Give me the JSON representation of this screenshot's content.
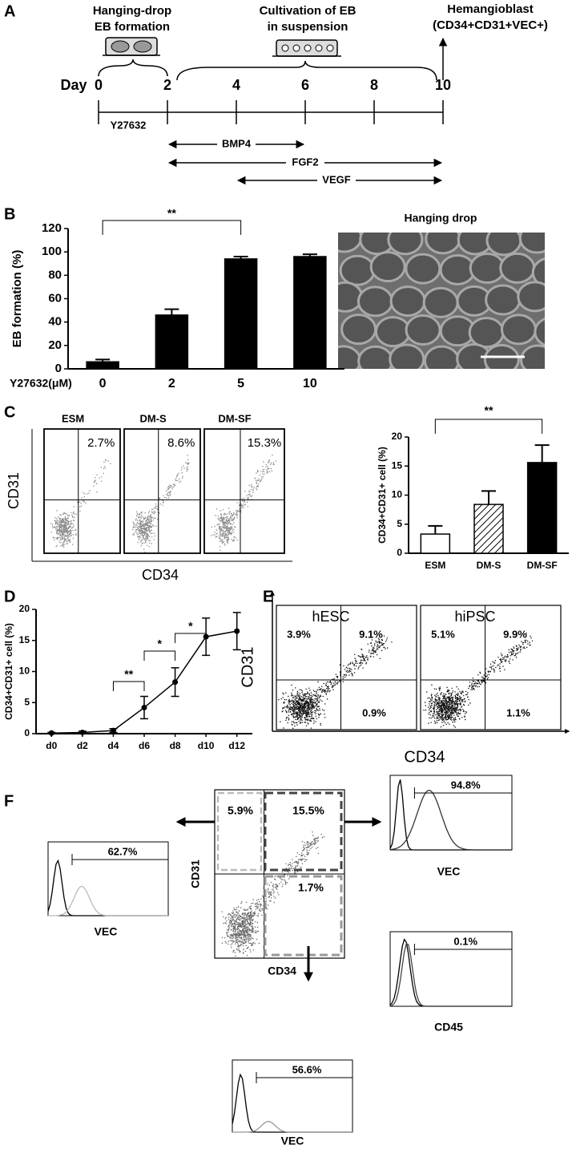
{
  "panels": [
    "A",
    "B",
    "C",
    "D",
    "E",
    "F"
  ],
  "timeline": {
    "day_label": "Day",
    "days": [
      0,
      2,
      4,
      6,
      8,
      10
    ],
    "step1": [
      "Hanging-drop",
      "EB formation"
    ],
    "step2": [
      "Cultivation of EB",
      "in suspension"
    ],
    "result": [
      "Hemangioblast",
      "(CD34+CD31+VEC+)"
    ],
    "treatments": [
      "Y27632",
      "BMP4",
      "FGF2",
      "VEGF"
    ]
  },
  "micrograph_title": "Hanging drop",
  "chart_data": [
    {
      "type": "bar",
      "ylabel": "EB formation (%)",
      "xlabel": "Y27632(μM)",
      "categories": [
        "0",
        "2",
        "5",
        "10"
      ],
      "values": [
        6,
        46,
        94,
        96
      ],
      "errors": [
        2,
        5,
        2,
        2
      ],
      "fills": [
        "black",
        "black",
        "black",
        "black"
      ],
      "ylim": [
        0,
        120
      ],
      "yticks": [
        0,
        20,
        40,
        60,
        80,
        100,
        120
      ],
      "annotations": [
        "**"
      ]
    },
    {
      "type": "bar",
      "ylabel": "CD34+CD31+ cell (%)",
      "categories": [
        "ESM",
        "DM-S",
        "DM-SF"
      ],
      "values": [
        3.3,
        8.4,
        15.6
      ],
      "errors": [
        1.4,
        2.3,
        3.0
      ],
      "fills": [
        "white",
        "hatched",
        "black"
      ],
      "ylim": [
        0,
        20
      ],
      "yticks": [
        0,
        5,
        10,
        15,
        20
      ],
      "annotations": [
        "**"
      ]
    },
    {
      "type": "line",
      "ylabel": "CD34+CD31+ cell (%)",
      "categories": [
        "d0",
        "d2",
        "d4",
        "d6",
        "d8",
        "d10",
        "d12"
      ],
      "values": [
        0.1,
        0.2,
        0.5,
        4.2,
        8.3,
        15.6,
        16.5
      ],
      "errors": [
        0.1,
        0.2,
        0.3,
        1.8,
        2.3,
        3.0,
        3.0
      ],
      "color": "#000000",
      "ylim": [
        0,
        20
      ],
      "yticks": [
        0,
        5,
        10,
        15,
        20
      ],
      "annotations": [
        "**",
        "*",
        "*"
      ]
    }
  ],
  "flow_c": {
    "y_label": "CD31",
    "x_label": "CD34",
    "plots": [
      {
        "title": "ESM",
        "value": "2.7%"
      },
      {
        "title": "DM-S",
        "value": "8.6%"
      },
      {
        "title": "DM-SF",
        "value": "15.3%"
      }
    ]
  },
  "flow_e": {
    "y_label": "CD31",
    "x_label": "CD34",
    "plots": [
      {
        "title": "hESC",
        "quadrants": [
          "3.9%",
          "9.1%",
          "0.9%"
        ]
      },
      {
        "title": "hiPSC",
        "quadrants": [
          "5.1%",
          "9.9%",
          "1.1%"
        ]
      }
    ]
  },
  "flow_f": {
    "y_label": "CD31",
    "x_label": "CD34",
    "quadrants": [
      "5.9%",
      "15.5%",
      "1.7%"
    ],
    "histograms": [
      {
        "value": "62.7%",
        "label": "VEC"
      },
      {
        "value": "94.8%",
        "label": "VEC"
      },
      {
        "value": "0.1%",
        "label": "CD45"
      },
      {
        "value": "56.6%",
        "label": "VEC"
      }
    ]
  }
}
